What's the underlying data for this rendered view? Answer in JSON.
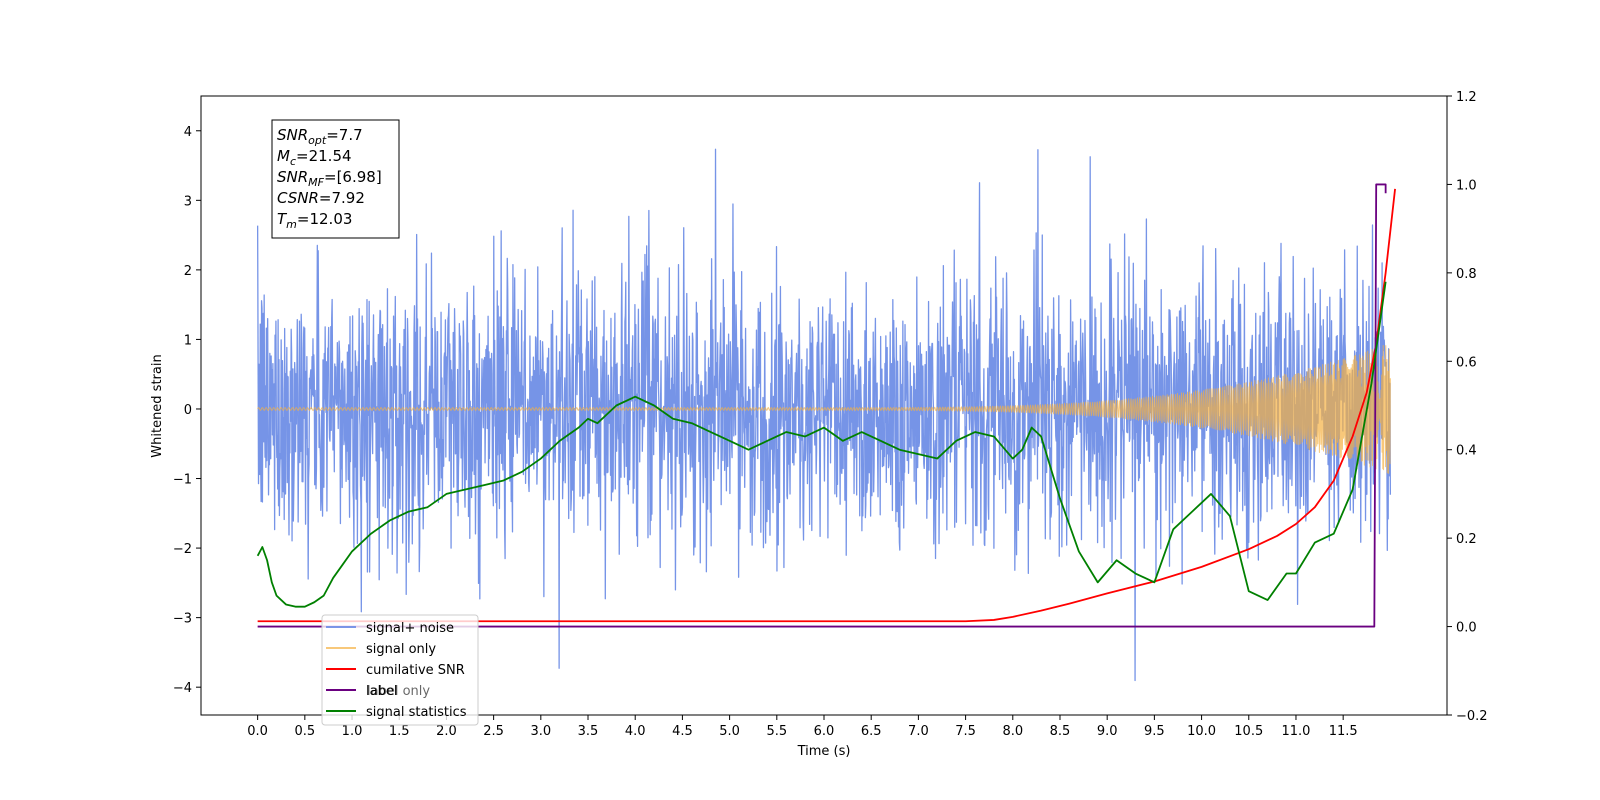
{
  "chart_data": {
    "type": "line",
    "xlabel": "Time (s)",
    "ylabel_left": "Whitened strain",
    "ylabel_right": "",
    "xlim": [
      -0.6,
      12.6
    ],
    "ylim_left": [
      -4.4,
      4.5
    ],
    "ylim_right": [
      -0.2,
      1.2
    ],
    "x_ticks": [
      0.0,
      0.5,
      1.0,
      1.5,
      2.0,
      2.5,
      3.0,
      3.5,
      4.0,
      4.5,
      5.0,
      5.5,
      6.0,
      6.5,
      7.0,
      7.5,
      8.0,
      8.5,
      9.0,
      9.5,
      10.0,
      10.5,
      11.0,
      11.5
    ],
    "x_tick_labels": [
      "0.0",
      "0.5",
      "1.0",
      "1.5",
      "2.0",
      "2.5",
      "3.0",
      "3.5",
      "4.0",
      "4.5",
      "5.0",
      "5.5",
      "6.0",
      "6.5",
      "7.0",
      "7.5",
      "8.0",
      "8.5",
      "9.0",
      "9.5",
      "10.0",
      "10.5",
      "11.0",
      "11.5"
    ],
    "y_left_ticks": [
      -4,
      -3,
      -2,
      -1,
      0,
      1,
      2,
      3,
      4
    ],
    "y_left_tick_labels": [
      "−4",
      "−3",
      "−2",
      "−1",
      "0",
      "1",
      "2",
      "3",
      "4"
    ],
    "y_right_ticks": [
      -0.2,
      0.0,
      0.2,
      0.4,
      0.6,
      0.8,
      1.0,
      1.2
    ],
    "y_right_tick_labels": [
      "−0.2",
      "0.0",
      "0.2",
      "0.4",
      "0.6",
      "0.8",
      "1.0",
      "1.2"
    ],
    "grid": false,
    "legend_position": "lower-left",
    "annotation": {
      "position": "top-left",
      "lines": [
        {
          "sym": "SNR",
          "sub": "opt",
          "rest": "=7.7"
        },
        {
          "sym": "M",
          "sub": "c",
          "rest": "=21.54"
        },
        {
          "sym": "SNR",
          "sub": "MF",
          "rest": "=[6.98]"
        },
        {
          "sym": "CSNR",
          "sub": "",
          "rest": "=7.92"
        },
        {
          "sym": "T",
          "sub": "m",
          "rest": "=12.03"
        }
      ]
    },
    "series": [
      {
        "name": "signal+ noise",
        "axis": "left",
        "color": "#6f8ee6",
        "kind": "noise",
        "x_range": [
          0.0,
          12.0
        ],
        "std": 0.95
      },
      {
        "name": "signal only",
        "axis": "left",
        "color": "#f5b041",
        "kind": "chirp",
        "x_range": [
          0.0,
          12.0
        ],
        "env_start": 0.02,
        "env_end": 0.95
      },
      {
        "name": "cumilative SNR",
        "axis": "right",
        "color": "#ff0000",
        "x": [
          0.0,
          7.5,
          7.8,
          8.0,
          8.3,
          8.6,
          9.0,
          9.5,
          10.0,
          10.5,
          10.8,
          11.0,
          11.2,
          11.4,
          11.6,
          11.75,
          11.85,
          11.95,
          12.05
        ],
        "y": [
          0.012,
          0.012,
          0.015,
          0.022,
          0.036,
          0.052,
          0.075,
          0.102,
          0.135,
          0.175,
          0.205,
          0.232,
          0.27,
          0.33,
          0.43,
          0.53,
          0.64,
          0.8,
          0.99
        ]
      },
      {
        "name": "label",
        "axis": "right",
        "color": "#6a0080",
        "x": [
          0.0,
          11.83,
          11.85,
          11.95,
          11.95
        ],
        "y": [
          0.0,
          0.0,
          1.0,
          1.0,
          0.98
        ]
      },
      {
        "name": "signal statistics",
        "axis": "right",
        "color": "#008000",
        "x": [
          0.0,
          0.05,
          0.1,
          0.15,
          0.2,
          0.3,
          0.4,
          0.5,
          0.6,
          0.7,
          0.8,
          0.9,
          1.0,
          1.2,
          1.4,
          1.6,
          1.8,
          2.0,
          2.2,
          2.4,
          2.6,
          2.8,
          3.0,
          3.2,
          3.4,
          3.5,
          3.6,
          3.8,
          4.0,
          4.2,
          4.4,
          4.6,
          4.8,
          5.0,
          5.2,
          5.4,
          5.6,
          5.8,
          6.0,
          6.2,
          6.4,
          6.6,
          6.8,
          7.0,
          7.2,
          7.4,
          7.6,
          7.8,
          8.0,
          8.1,
          8.2,
          8.3,
          8.5,
          8.7,
          8.9,
          9.1,
          9.3,
          9.5,
          9.7,
          9.9,
          10.1,
          10.3,
          10.5,
          10.7,
          10.9,
          11.0,
          11.2,
          11.4,
          11.6,
          11.8,
          11.95
        ],
        "y": [
          0.16,
          0.18,
          0.15,
          0.1,
          0.07,
          0.05,
          0.045,
          0.045,
          0.055,
          0.07,
          0.11,
          0.14,
          0.17,
          0.21,
          0.24,
          0.26,
          0.27,
          0.3,
          0.31,
          0.32,
          0.33,
          0.35,
          0.38,
          0.42,
          0.45,
          0.47,
          0.46,
          0.5,
          0.52,
          0.5,
          0.47,
          0.46,
          0.44,
          0.42,
          0.4,
          0.42,
          0.44,
          0.43,
          0.45,
          0.42,
          0.44,
          0.42,
          0.4,
          0.39,
          0.38,
          0.42,
          0.44,
          0.43,
          0.38,
          0.4,
          0.45,
          0.43,
          0.29,
          0.17,
          0.1,
          0.15,
          0.12,
          0.1,
          0.22,
          0.26,
          0.3,
          0.25,
          0.08,
          0.06,
          0.12,
          0.12,
          0.19,
          0.21,
          0.31,
          0.55,
          0.78
        ]
      }
    ],
    "legend_entries": [
      {
        "label": "signal+ noise",
        "color": "#6f8ee6",
        "alpha": 0.9
      },
      {
        "label": "signal only",
        "color": "#f5b041",
        "alpha": 0.7
      },
      {
        "label": "cumilative SNR",
        "color": "#ff0000",
        "alpha": 1
      },
      {
        "label": "label",
        "color": "#6a0080",
        "alpha": 1
      },
      {
        "label": "signal statistics",
        "color": "#008000",
        "alpha": 1
      }
    ],
    "legend_ghost_text": [
      "label only"
    ]
  }
}
